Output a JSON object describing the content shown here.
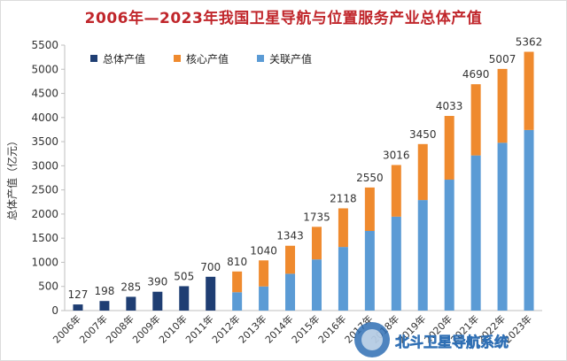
{
  "chart_data": {
    "type": "bar",
    "title": "2006年—2023年我国卫星导航与位置服务产业总体产值",
    "ylabel": "总体产值（亿元）",
    "xlabel": "",
    "ylim": [
      0,
      5500
    ],
    "yticks": [
      0,
      500,
      1000,
      1500,
      2000,
      2500,
      3000,
      3500,
      4000,
      4500,
      5000,
      5500
    ],
    "categories": [
      "2006年",
      "2007年",
      "2008年",
      "2009年",
      "2010年",
      "2011年",
      "2012年",
      "2013年",
      "2014年",
      "2015年",
      "2016年",
      "2017年",
      "2018年",
      "2019年",
      "2020年",
      "2021年",
      "2022年",
      "2023年"
    ],
    "series": [
      {
        "name": "总体产值",
        "color": "#1f3e73",
        "values": [
          127,
          198,
          285,
          390,
          505,
          700,
          null,
          null,
          null,
          null,
          null,
          null,
          null,
          null,
          null,
          null,
          null,
          null
        ]
      },
      {
        "name": "核心产值",
        "color": "#ef8a2e",
        "values": [
          null,
          null,
          null,
          null,
          null,
          null,
          430,
          540,
          580,
          675,
          800,
          900,
          1070,
          1160,
          1320,
          1475,
          1530,
          1620
        ]
      },
      {
        "name": "关联产值",
        "color": "#5b9bd5",
        "values": [
          null,
          null,
          null,
          null,
          null,
          null,
          380,
          500,
          763,
          1060,
          1318,
          1650,
          1946,
          2290,
          2713,
          3215,
          3477,
          3742
        ]
      }
    ],
    "totals": [
      127,
      198,
      285,
      390,
      505,
      700,
      810,
      1040,
      1343,
      1735,
      2118,
      2550,
      3016,
      3450,
      4033,
      4690,
      5007,
      5362
    ],
    "legend": [
      "总体产值",
      "核心产值",
      "关联产值"
    ],
    "legend_position": "top-left",
    "grid": false
  },
  "watermark": {
    "text": "北斗卫星导航系统"
  }
}
